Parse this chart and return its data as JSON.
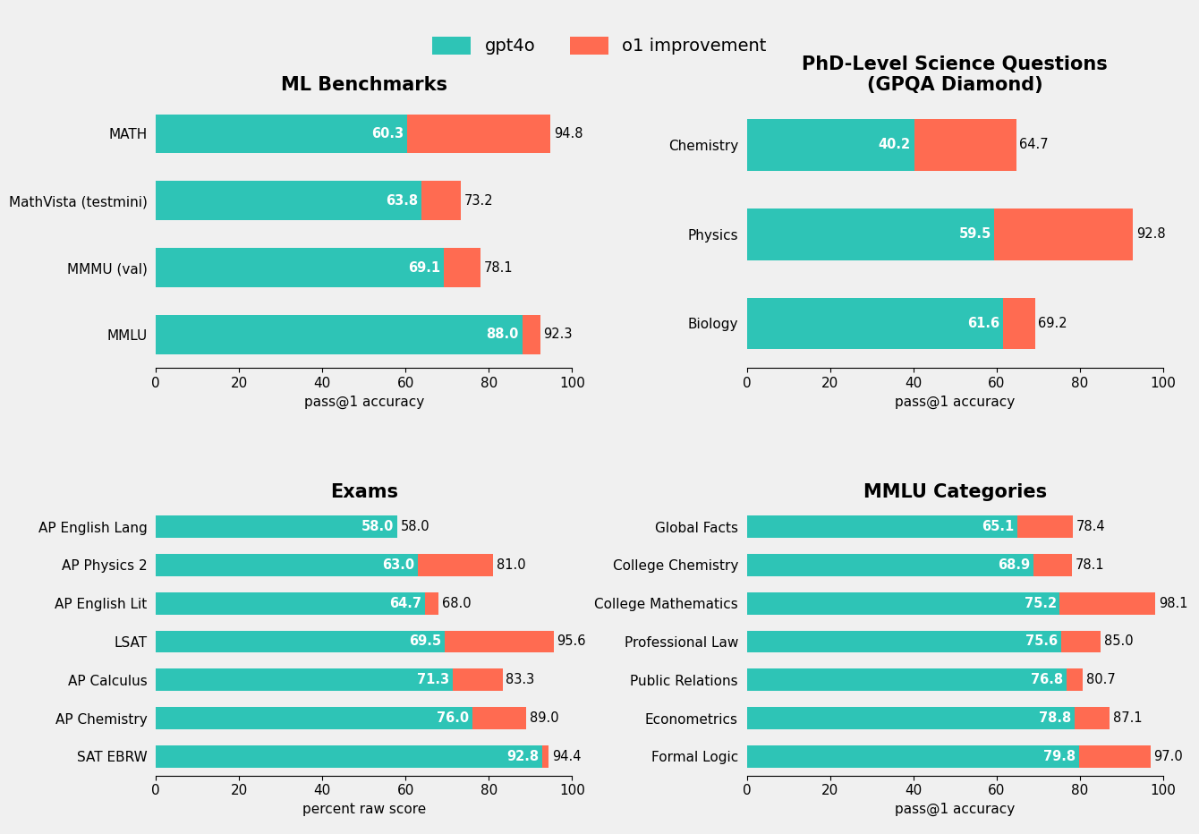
{
  "color_gpt4o": "#2EC4B6",
  "color_o1": "#FF6B51",
  "bg_color": "#F0F0F0",
  "legend_labels": [
    "gpt4o",
    "o1 improvement"
  ],
  "subplots": [
    {
      "title": "ML Benchmarks",
      "xlabel": "pass@1 accuracy",
      "categories": [
        "MMLU",
        "MMMU (val)",
        "MathVista (testmini)",
        "MATH"
      ],
      "gpt4o": [
        88.0,
        69.1,
        63.8,
        60.3
      ],
      "o1_total": [
        92.3,
        78.1,
        73.2,
        94.8
      ],
      "xlim": [
        0,
        100
      ],
      "xticks": [
        0,
        20,
        40,
        60,
        80,
        100
      ]
    },
    {
      "title": "PhD-Level Science Questions\n(GPQA Diamond)",
      "xlabel": "pass@1 accuracy",
      "categories": [
        "Biology",
        "Physics",
        "Chemistry"
      ],
      "gpt4o": [
        61.6,
        59.5,
        40.2
      ],
      "o1_total": [
        69.2,
        92.8,
        64.7
      ],
      "xlim": [
        0,
        100
      ],
      "xticks": [
        0,
        20,
        40,
        60,
        80,
        100
      ]
    },
    {
      "title": "Exams",
      "xlabel": "percent raw score",
      "categories": [
        "SAT EBRW",
        "AP Chemistry",
        "AP Calculus",
        "LSAT",
        "AP English Lit",
        "AP Physics 2",
        "AP English Lang"
      ],
      "gpt4o": [
        92.8,
        76.0,
        71.3,
        69.5,
        64.7,
        63.0,
        58.0
      ],
      "o1_total": [
        94.4,
        89.0,
        83.3,
        95.6,
        68.0,
        81.0,
        58.0
      ],
      "xlim": [
        0,
        100
      ],
      "xticks": [
        0,
        20,
        40,
        60,
        80,
        100
      ]
    },
    {
      "title": "MMLU Categories",
      "xlabel": "pass@1 accuracy",
      "categories": [
        "Formal Logic",
        "Econometrics",
        "Public Relations",
        "Professional Law",
        "College Mathematics",
        "College Chemistry",
        "Global Facts"
      ],
      "gpt4o": [
        79.8,
        78.8,
        76.8,
        75.6,
        75.2,
        68.9,
        65.1
      ],
      "o1_total": [
        97.0,
        87.1,
        80.7,
        85.0,
        98.1,
        78.1,
        78.4
      ],
      "xlim": [
        0,
        100
      ],
      "xticks": [
        0,
        20,
        40,
        60,
        80,
        100
      ]
    }
  ],
  "title_fontsize": 15,
  "label_fontsize": 11,
  "tick_fontsize": 11,
  "bar_label_fontsize": 10.5,
  "bar_height": 0.58
}
